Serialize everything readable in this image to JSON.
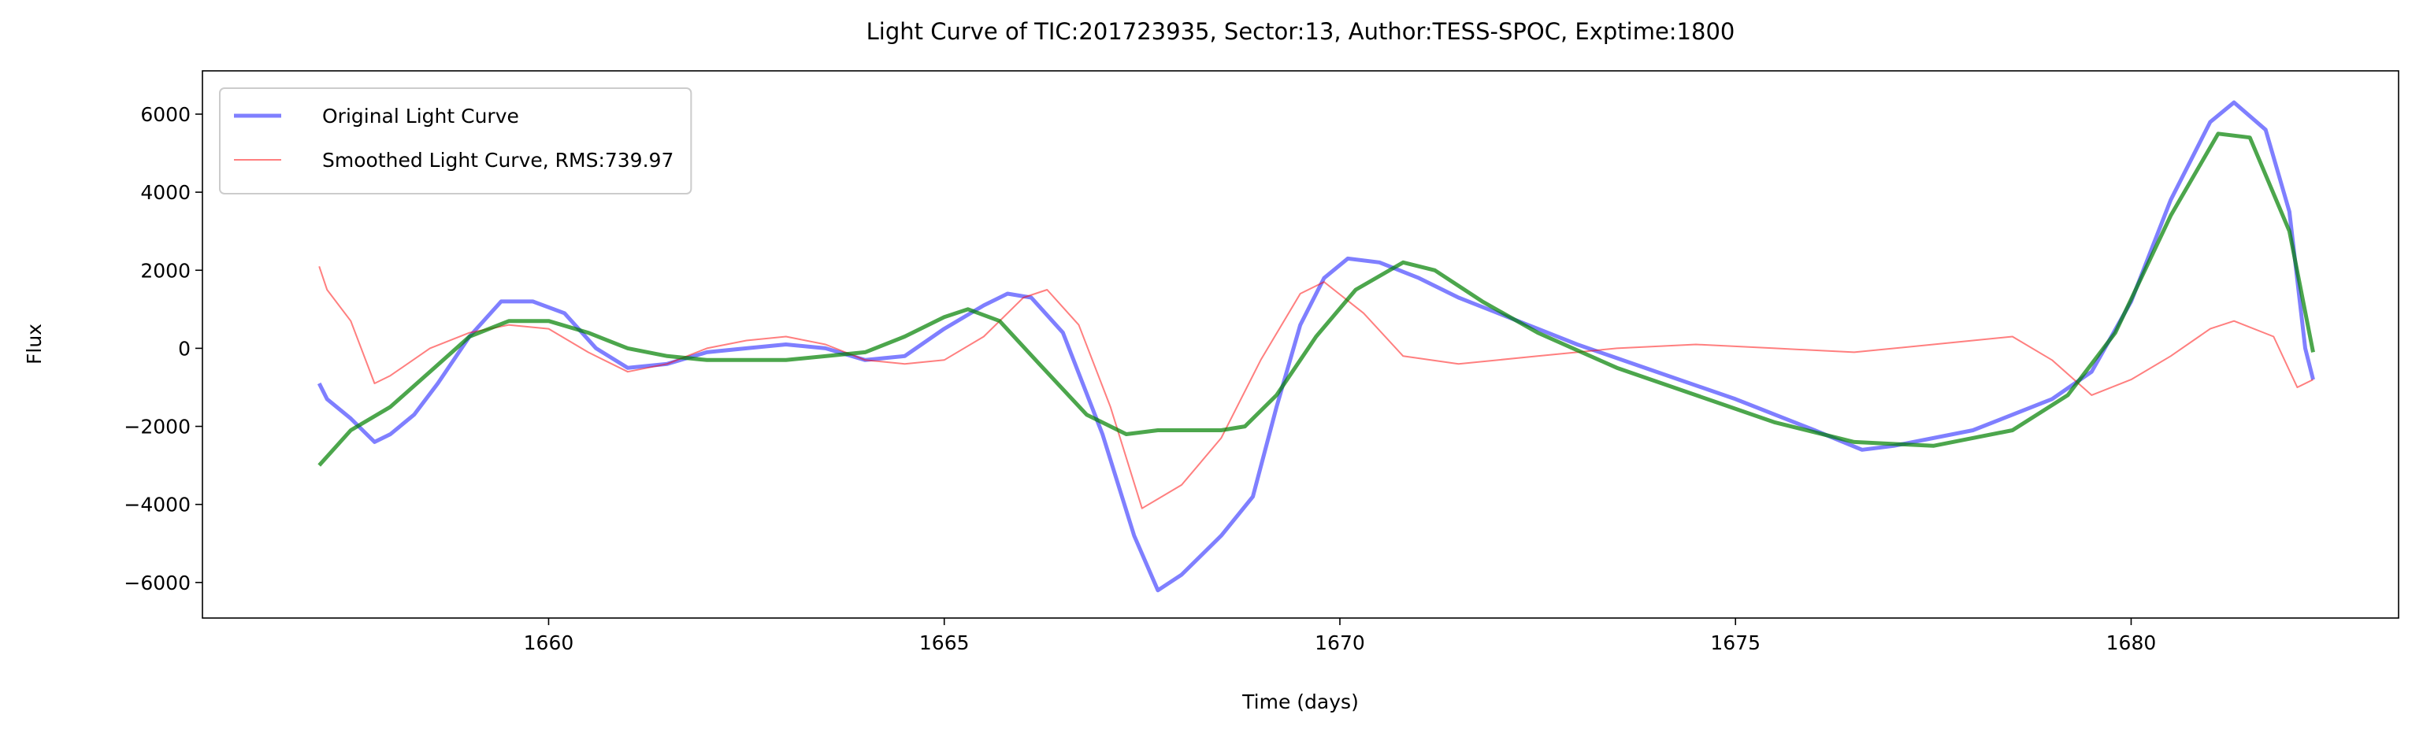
{
  "chart_data": {
    "type": "line",
    "title": "Light Curve of TIC:201723935, Sector:13, Author:TESS-SPOC, Exptime:1800",
    "xlabel": "Time (days)",
    "ylabel": "Flux",
    "xlim": [
      1655.625,
      1683.38
    ],
    "ylim": [
      -6911,
      7109
    ],
    "xticks": [
      1660,
      1665,
      1670,
      1675,
      1680
    ],
    "yticks": [
      {
        "value": -6000,
        "label": "−6000"
      },
      {
        "value": -4000,
        "label": "−4000"
      },
      {
        "value": -2000,
        "label": "−2000"
      },
      0,
      2000,
      4000,
      6000
    ],
    "legend": "upper left",
    "grid": false,
    "series": [
      {
        "name": "Original Light Curve",
        "color": "#0000ff",
        "opacity": 0.5,
        "width": 5,
        "x": [
          1657.1,
          1657.2,
          1657.5,
          1657.8,
          1658.0,
          1658.3,
          1658.6,
          1659.0,
          1659.4,
          1659.8,
          1660.2,
          1660.6,
          1661.0,
          1661.5,
          1662.0,
          1662.5,
          1663.0,
          1663.5,
          1664.0,
          1664.5,
          1665.0,
          1665.5,
          1665.8,
          1666.1,
          1666.5,
          1667.0,
          1667.4,
          1667.7,
          1668.0,
          1668.5,
          1668.9,
          1669.2,
          1669.5,
          1669.8,
          1670.1,
          1670.5,
          1671.0,
          1671.5,
          1672.0,
          1672.5,
          1673.0,
          1674.0,
          1675.0,
          1676.0,
          1676.6,
          1677.0,
          1678.0,
          1679.0,
          1679.5,
          1680.0,
          1680.5,
          1681.0,
          1681.3,
          1681.7,
          1682.0,
          1682.2,
          1682.3
        ],
        "values": [
          -900,
          -1300,
          -1800,
          -2400,
          -2200,
          -1700,
          -900,
          300,
          1200,
          1200,
          900,
          0,
          -500,
          -400,
          -100,
          0,
          100,
          0,
          -300,
          -200,
          500,
          1100,
          1400,
          1300,
          400,
          -2200,
          -4800,
          -6200,
          -5800,
          -4800,
          -3800,
          -1500,
          600,
          1800,
          2300,
          2200,
          1800,
          1300,
          900,
          500,
          100,
          -600,
          -1300,
          -2100,
          -2600,
          -2500,
          -2100,
          -1300,
          -600,
          1200,
          3800,
          5800,
          6300,
          5600,
          3500,
          0,
          -800
        ]
      },
      {
        "name": "Smoothed Light Curve, RMS:739.97",
        "color": "#ff0000",
        "opacity": 0.5,
        "width": 2,
        "x": [
          1657.1,
          1657.2,
          1657.5,
          1657.8,
          1658.0,
          1658.5,
          1659.0,
          1659.5,
          1660.0,
          1660.5,
          1661.0,
          1661.5,
          1662.0,
          1662.5,
          1663.0,
          1663.5,
          1664.0,
          1664.5,
          1665.0,
          1665.5,
          1666.0,
          1666.3,
          1666.7,
          1667.1,
          1667.5,
          1668.0,
          1668.5,
          1669.0,
          1669.5,
          1669.8,
          1670.3,
          1670.8,
          1671.5,
          1672.5,
          1673.5,
          1674.5,
          1675.5,
          1676.5,
          1677.5,
          1678.5,
          1679.0,
          1679.5,
          1680.0,
          1680.5,
          1681.0,
          1681.3,
          1681.8,
          1682.1,
          1682.3
        ],
        "values": [
          2100,
          1500,
          700,
          -900,
          -700,
          0,
          400,
          600,
          500,
          -100,
          -600,
          -400,
          0,
          200,
          300,
          100,
          -300,
          -400,
          -300,
          300,
          1300,
          1500,
          600,
          -1500,
          -4100,
          -3500,
          -2300,
          -300,
          1400,
          1700,
          900,
          -200,
          -400,
          -200,
          0,
          100,
          0,
          -100,
          100,
          300,
          -300,
          -1200,
          -800,
          -200,
          500,
          700,
          300,
          -1000,
          -800
        ]
      },
      {
        "color": "#008000",
        "opacity": 0.7,
        "width": 5,
        "x": [
          1657.1,
          1657.5,
          1658.0,
          1658.5,
          1659.0,
          1659.5,
          1660.0,
          1660.5,
          1661.0,
          1661.5,
          1662.0,
          1663.0,
          1664.0,
          1664.5,
          1665.0,
          1665.3,
          1665.7,
          1666.2,
          1666.8,
          1667.3,
          1667.7,
          1668.5,
          1668.8,
          1669.2,
          1669.7,
          1670.2,
          1670.8,
          1671.2,
          1671.8,
          1672.5,
          1673.5,
          1674.5,
          1675.5,
          1676.5,
          1677.5,
          1678.5,
          1679.2,
          1679.8,
          1680.5,
          1681.1,
          1681.5,
          1682.0,
          1682.3
        ],
        "values": [
          -3000,
          -2100,
          -1500,
          -600,
          300,
          700,
          700,
          400,
          0,
          -200,
          -300,
          -300,
          -100,
          300,
          800,
          1000,
          700,
          -400,
          -1700,
          -2200,
          -2100,
          -2100,
          -2000,
          -1200,
          300,
          1500,
          2200,
          2000,
          1200,
          400,
          -500,
          -1200,
          -1900,
          -2400,
          -2500,
          -2100,
          -1200,
          400,
          3400,
          5500,
          5400,
          3000,
          -100
        ]
      }
    ]
  }
}
